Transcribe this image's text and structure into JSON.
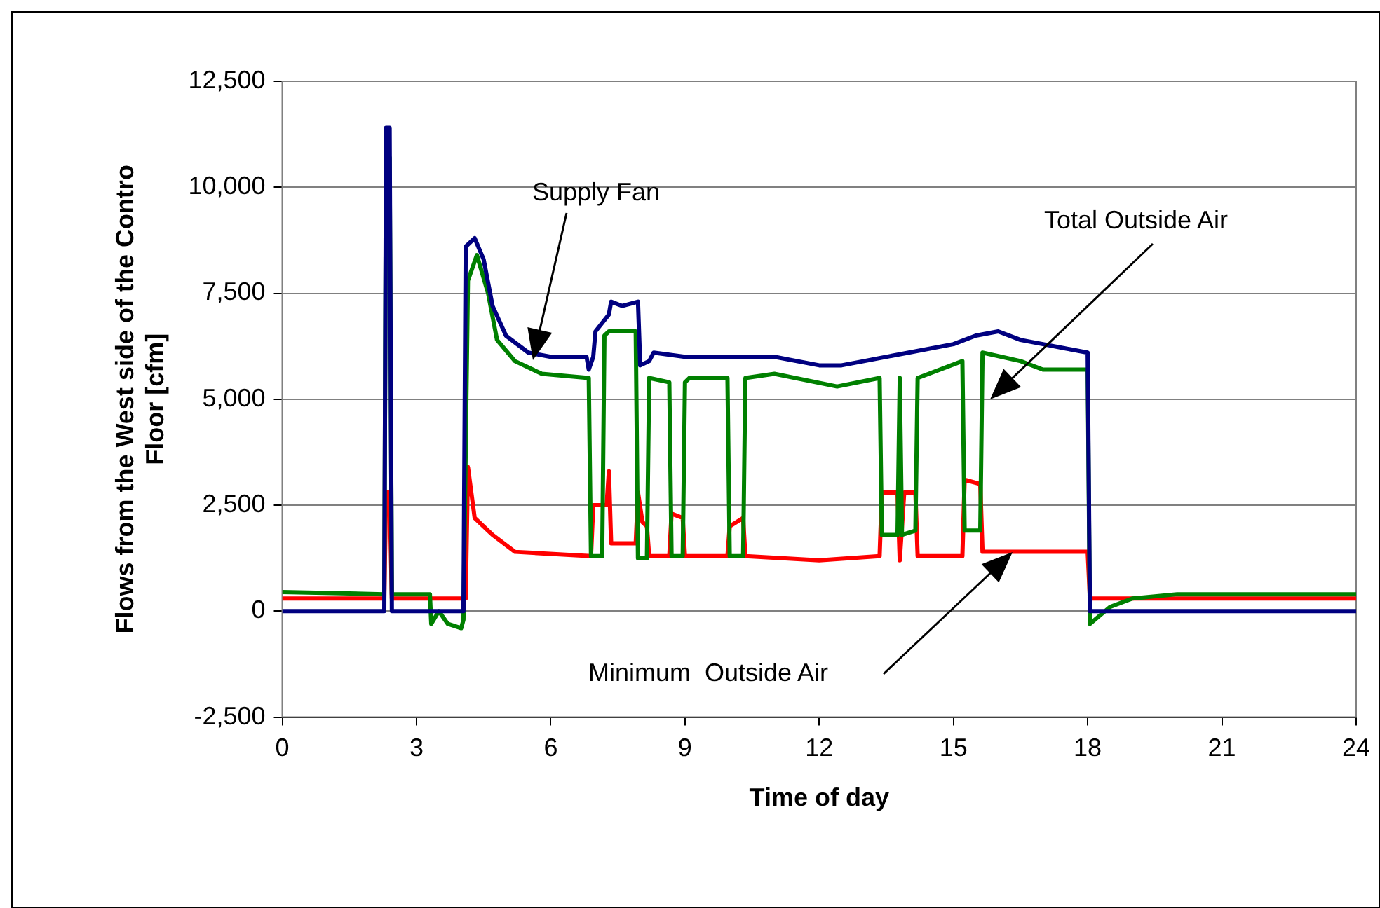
{
  "chart_data": {
    "type": "line",
    "xlabel": "Time of day",
    "ylabel": "Flows from the West side of the Contro Floor [cfm]",
    "xlim": [
      0,
      24
    ],
    "xticks": [
      0,
      3,
      6,
      9,
      12,
      15,
      18,
      21,
      24
    ],
    "ylim": [
      -2500,
      12500
    ],
    "yticks": [
      {
        "value": -2500,
        "label": "-2,500"
      },
      0,
      {
        "value": 2500,
        "label": "2,500"
      },
      {
        "value": 5000,
        "label": "5,000"
      },
      {
        "value": 7500,
        "label": "7,500"
      },
      {
        "value": 10000,
        "label": "10,000"
      },
      {
        "value": 12500,
        "label": "12,500"
      }
    ],
    "grid": "y",
    "legend": false,
    "marker": "none",
    "line_style": "solid",
    "annotations": [
      "Supply Fan",
      "Total Outside Air",
      "Minimum  Outside Air"
    ],
    "series": [
      {
        "color": "#000080",
        "x": [
          0,
          2.28,
          2.32,
          2.4,
          2.45,
          4.05,
          4.1,
          4.3,
          4.5,
          4.7,
          5.0,
          5.5,
          6.0,
          6.8,
          6.85,
          6.95,
          7.0,
          7.3,
          7.35,
          7.6,
          7.95,
          8.0,
          8.2,
          8.3,
          9,
          10,
          11,
          12,
          12.5,
          13,
          14,
          15,
          15.5,
          16,
          16.5,
          17,
          17.5,
          18,
          18.05,
          24
        ],
        "values": [
          0,
          0,
          11400,
          11400,
          0,
          0,
          8600,
          8800,
          8300,
          7200,
          6500,
          6100,
          6000,
          6000,
          5700,
          6000,
          6600,
          7000,
          7300,
          7200,
          7300,
          5800,
          5900,
          6100,
          6000,
          6000,
          6000,
          5800,
          5800,
          5900,
          6100,
          6300,
          6500,
          6600,
          6400,
          6300,
          6200,
          6100,
          0,
          0
        ]
      },
      {
        "color": "#008000",
        "x": [
          0,
          2.28,
          2.32,
          2.4,
          2.45,
          3.3,
          3.33,
          3.5,
          3.7,
          4.0,
          4.05,
          4.15,
          4.35,
          4.6,
          4.8,
          5.2,
          5.8,
          6.85,
          6.9,
          7.15,
          7.2,
          7.3,
          7.9,
          7.95,
          8.15,
          8.2,
          8.65,
          8.7,
          8.95,
          9.0,
          9.1,
          9.95,
          10.0,
          10.3,
          10.35,
          11,
          12.4,
          13.35,
          13.4,
          13.75,
          13.8,
          13.85,
          14.15,
          14.2,
          15.2,
          15.25,
          15.6,
          15.65,
          16.5,
          17,
          18,
          18.05,
          18.5,
          19,
          20,
          24
        ],
        "values": [
          450,
          400,
          10700,
          10700,
          400,
          400,
          -300,
          0,
          -300,
          -400,
          -200,
          7800,
          8400,
          7500,
          6400,
          5900,
          5600,
          5500,
          1300,
          1300,
          6500,
          6600,
          6600,
          1250,
          1250,
          5500,
          5400,
          1300,
          1300,
          5400,
          5500,
          5500,
          1300,
          1300,
          5500,
          5600,
          5300,
          5500,
          1800,
          1800,
          5500,
          1800,
          1900,
          5500,
          5900,
          1900,
          1900,
          6100,
          5900,
          5700,
          5700,
          -300,
          100,
          300,
          400,
          400
        ]
      },
      {
        "color": "#ff0000",
        "x": [
          0,
          2.28,
          2.32,
          2.4,
          2.45,
          4.1,
          4.15,
          4.3,
          4.7,
          5.2,
          6.9,
          6.95,
          7.25,
          7.3,
          7.35,
          7.9,
          7.95,
          8.05,
          8.15,
          8.2,
          8.65,
          8.7,
          8.95,
          9.0,
          9.95,
          10.0,
          10.3,
          10.35,
          12,
          13.35,
          13.4,
          13.75,
          13.8,
          13.9,
          14.15,
          14.2,
          15.2,
          15.25,
          15.6,
          15.65,
          17,
          18,
          18.05,
          24
        ],
        "values": [
          300,
          300,
          2800,
          2800,
          300,
          300,
          3400,
          2200,
          1800,
          1400,
          1300,
          2500,
          2500,
          3300,
          1600,
          1600,
          2800,
          2100,
          2000,
          1300,
          1300,
          2300,
          2200,
          1300,
          1300,
          2000,
          2200,
          1300,
          1200,
          1300,
          2800,
          2800,
          1200,
          2800,
          2800,
          1300,
          1300,
          3100,
          3000,
          1400,
          1400,
          1400,
          300,
          300
        ]
      }
    ]
  }
}
